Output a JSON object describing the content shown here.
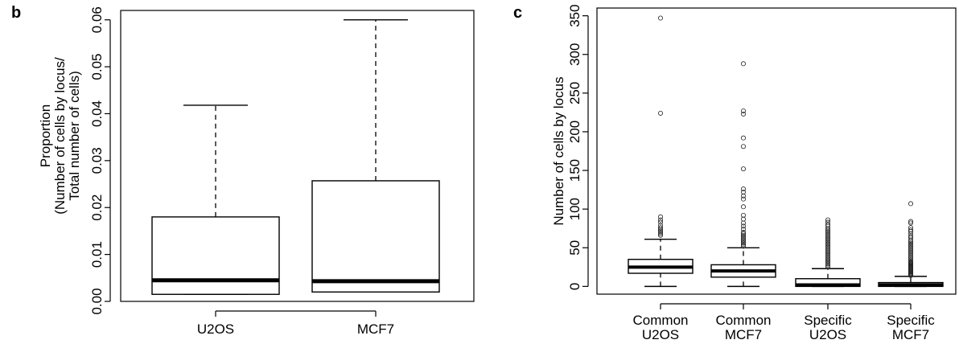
{
  "chart_data": [
    {
      "type": "box",
      "panel_label": "b",
      "title": "",
      "xlabel": "",
      "ylabel_lines": [
        "Proportion",
        "(Number of cells by locus/",
        "Total number of cells)"
      ],
      "ylim": [
        0,
        0.062
      ],
      "y_ticks": [
        0.0,
        0.01,
        0.02,
        0.03,
        0.04,
        0.05,
        0.06
      ],
      "y_tick_labels": [
        "0.00",
        "0.01",
        "0.02",
        "0.03",
        "0.04",
        "0.05",
        "0.06"
      ],
      "categories": [
        "U2OS",
        "MCF7"
      ],
      "boxes": [
        {
          "label": "U2OS",
          "min": 0.0015,
          "q1": 0.0015,
          "median": 0.0045,
          "q3": 0.018,
          "max": 0.0418,
          "outliers": []
        },
        {
          "label": "MCF7",
          "min": 0.002,
          "q1": 0.002,
          "median": 0.0043,
          "q3": 0.0257,
          "max": 0.06,
          "outliers": []
        }
      ],
      "grid": false
    },
    {
      "type": "box",
      "panel_label": "c",
      "title": "",
      "xlabel": "",
      "ylabel_lines": [
        "Number of cells by locus"
      ],
      "ylim": [
        -10,
        360
      ],
      "y_ticks": [
        0,
        50,
        100,
        150,
        200,
        250,
        300,
        350
      ],
      "y_tick_labels": [
        "0",
        "50",
        "100",
        "150",
        "200",
        "250",
        "300",
        "350"
      ],
      "categories": [
        "Common\nU2OS",
        "Common\nMCF7",
        "Specific\nU2OS",
        "Specific\nMCF7"
      ],
      "category_lines": [
        [
          "Common",
          "U2OS"
        ],
        [
          "Common",
          "MCF7"
        ],
        [
          "Specific",
          "U2OS"
        ],
        [
          "Specific",
          "MCF7"
        ]
      ],
      "boxes": [
        {
          "label": "Common U2OS",
          "min": 0,
          "q1": 17,
          "median": 25,
          "q3": 35,
          "max": 61,
          "outliers": [
            66,
            68,
            70,
            72,
            74,
            76,
            79,
            83,
            86,
            90,
            224,
            347
          ]
        },
        {
          "label": "Common MCF7",
          "min": 0,
          "q1": 12,
          "median": 20,
          "q3": 28,
          "max": 50,
          "outliers": [
            52,
            54,
            56,
            58,
            60,
            62,
            64,
            66,
            68,
            70,
            74,
            78,
            82,
            87,
            92,
            103,
            113,
            117,
            122,
            126,
            152,
            181,
            192,
            223,
            227,
            288
          ]
        },
        {
          "label": "Specific U2OS",
          "min": 0,
          "q1": 0,
          "median": 2,
          "q3": 10,
          "max": 23,
          "outliers": [
            25,
            27,
            29,
            31,
            33,
            35,
            37,
            39,
            41,
            43,
            45,
            47,
            49,
            51,
            53,
            55,
            57,
            59,
            61,
            63,
            65,
            67,
            69,
            71,
            73,
            75,
            78,
            80,
            83,
            86
          ]
        },
        {
          "label": "Specific MCF7",
          "min": 0,
          "q1": 0,
          "median": 2,
          "q3": 5,
          "max": 13,
          "outliers": [
            14,
            15,
            16,
            17,
            18,
            19,
            20,
            21,
            22,
            23,
            24,
            25,
            26,
            27,
            28,
            29,
            30,
            31,
            32,
            34,
            36,
            38,
            40,
            42,
            44,
            46,
            48,
            50,
            52,
            54,
            56,
            58,
            60,
            63,
            65,
            68,
            71,
            73,
            76,
            82,
            84,
            107
          ]
        }
      ],
      "grid": false
    }
  ]
}
